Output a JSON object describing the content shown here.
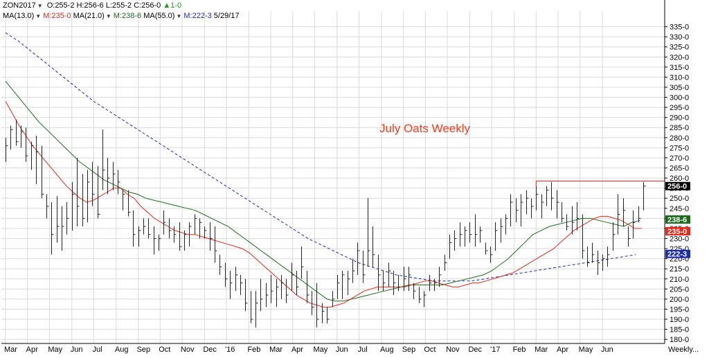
{
  "header": {
    "symbol": "ZON2017",
    "open_label": "O:",
    "open": "255-2",
    "high_label": "H:",
    "high": "256-6",
    "low_label": "L:",
    "low": "255-2",
    "close_label": "C:",
    "close": "256-0",
    "change": "1-0",
    "ma1": "MA(13.0)",
    "ma1_value": "M:235-0",
    "ma2": "MA(21.0)",
    "ma2_value": "M:238-6",
    "ma3": "MA(55.0)",
    "ma3_value": "M:222-3",
    "date": "5/29/17",
    "dropdown_icon": "caret-down-icon",
    "change_icon": "triangle-up-icon"
  },
  "colors": {
    "price": "#222222",
    "ma13": "#e8261a",
    "ma21": "#1b6b1b",
    "ma55": "#1a2bb0",
    "resistance": "#e8261a",
    "grid": "#d9d9d9",
    "last_price_tag": "#000000",
    "ma13_tag": "#e8261a",
    "ma21_tag": "#1b6b1b",
    "ma55_tag": "#1a2bb0"
  },
  "chart_data": {
    "type": "ohlc",
    "title": "July Oats Weekly",
    "ylabel": "",
    "ylim": [
      178,
      340
    ],
    "grid": true,
    "x_labels": [
      "Mar",
      "Apr",
      "May",
      "Jun",
      "Jul",
      "Aug",
      "Sep",
      "Oct",
      "Nov",
      "Dec",
      "'16",
      "Feb",
      "Mar",
      "Apr",
      "May",
      "Jun",
      "Jul",
      "Aug",
      "Sep",
      "Oct",
      "Nov",
      "Dec",
      "'17",
      "Feb",
      "Mar",
      "Apr",
      "May",
      "Jun",
      "Weekly..."
    ],
    "y_ticks": [
      "335-0",
      "330-0",
      "325-0",
      "320-0",
      "315-0",
      "310-0",
      "305-0",
      "300-0",
      "295-0",
      "290-0",
      "285-0",
      "280-0",
      "275-0",
      "270-0",
      "265-0",
      "260-0",
      "255-0",
      "250-0",
      "245-0",
      "240-0",
      "235-0",
      "230-0",
      "225-0",
      "220-0",
      "215-0",
      "210-0",
      "205-0",
      "200-0",
      "195-0",
      "190-0",
      "185-0",
      "180-0"
    ],
    "price_tags": [
      {
        "label": "256-0",
        "value": 256.0,
        "kind": "last"
      },
      {
        "label": "238-6",
        "value": 238.75,
        "kind": "ma21"
      },
      {
        "label": "235-0",
        "value": 235.0,
        "kind": "ma13"
      },
      {
        "label": "222-3",
        "value": 222.375,
        "kind": "ma55"
      }
    ],
    "resistance": {
      "value": 258.5,
      "start_week": 104,
      "end_week": 127
    },
    "bars": [
      [
        280,
        268,
        276
      ],
      [
        286,
        274,
        284
      ],
      [
        289,
        276,
        278
      ],
      [
        286,
        275,
        283
      ],
      [
        285,
        268,
        271
      ],
      [
        278,
        264,
        276
      ],
      [
        281,
        257,
        273
      ],
      [
        276,
        250,
        252
      ],
      [
        252,
        240,
        246
      ],
      [
        248,
        222,
        232
      ],
      [
        251,
        228,
        236
      ],
      [
        246,
        224,
        236
      ],
      [
        248,
        232,
        240
      ],
      [
        258,
        234,
        252
      ],
      [
        270,
        236,
        246
      ],
      [
        262,
        236,
        240
      ],
      [
        264,
        238,
        258
      ],
      [
        268,
        246,
        252
      ],
      [
        266,
        240,
        242
      ],
      [
        284,
        254,
        264
      ],
      [
        270,
        252,
        260
      ],
      [
        268,
        254,
        262
      ],
      [
        264,
        252,
        258
      ],
      [
        254,
        244,
        252
      ],
      [
        254,
        241,
        243
      ],
      [
        244,
        226,
        232
      ],
      [
        236,
        226,
        234
      ],
      [
        240,
        232,
        236
      ],
      [
        240,
        230,
        232
      ],
      [
        236,
        222,
        230
      ],
      [
        232,
        224,
        230
      ],
      [
        244,
        232,
        238
      ],
      [
        240,
        230,
        234
      ],
      [
        236,
        228,
        232
      ],
      [
        238,
        224,
        226
      ],
      [
        234,
        224,
        232
      ],
      [
        238,
        226,
        236
      ],
      [
        242,
        232,
        240
      ],
      [
        240,
        230,
        238
      ],
      [
        236,
        230,
        234
      ],
      [
        238,
        224,
        230
      ],
      [
        236,
        218,
        224
      ],
      [
        222,
        212,
        216
      ],
      [
        218,
        206,
        210
      ],
      [
        214,
        200,
        208
      ],
      [
        216,
        204,
        212
      ],
      [
        212,
        202,
        208
      ],
      [
        210,
        194,
        198
      ],
      [
        204,
        188,
        190
      ],
      [
        204,
        186,
        198
      ],
      [
        210,
        194,
        200
      ],
      [
        208,
        196,
        202
      ],
      [
        212,
        198,
        204
      ],
      [
        210,
        196,
        206
      ],
      [
        212,
        200,
        208
      ],
      [
        210,
        198,
        202
      ],
      [
        218,
        204,
        212
      ],
      [
        214,
        202,
        206
      ],
      [
        226,
        210,
        216
      ],
      [
        214,
        198,
        202
      ],
      [
        204,
        192,
        196
      ],
      [
        208,
        186,
        190
      ],
      [
        198,
        188,
        194
      ],
      [
        196,
        188,
        190
      ],
      [
        204,
        196,
        200
      ],
      [
        212,
        200,
        208
      ],
      [
        214,
        200,
        212
      ],
      [
        214,
        202,
        210
      ],
      [
        220,
        208,
        214
      ],
      [
        228,
        212,
        224
      ],
      [
        224,
        208,
        212
      ],
      [
        250,
        216,
        224
      ],
      [
        236,
        216,
        222
      ],
      [
        222,
        204,
        212
      ],
      [
        214,
        204,
        208
      ],
      [
        218,
        206,
        214
      ],
      [
        214,
        202,
        208
      ],
      [
        212,
        204,
        206
      ],
      [
        216,
        204,
        210
      ],
      [
        216,
        204,
        212
      ],
      [
        208,
        200,
        204
      ],
      [
        206,
        198,
        200
      ],
      [
        204,
        196,
        202
      ],
      [
        212,
        204,
        208
      ],
      [
        210,
        204,
        208
      ],
      [
        216,
        206,
        212
      ],
      [
        222,
        214,
        218
      ],
      [
        232,
        220,
        228
      ],
      [
        234,
        224,
        230
      ],
      [
        238,
        226,
        232
      ],
      [
        236,
        226,
        234
      ],
      [
        238,
        228,
        232
      ],
      [
        242,
        226,
        232
      ],
      [
        236,
        228,
        234
      ],
      [
        228,
        222,
        224
      ],
      [
        226,
        218,
        222
      ],
      [
        238,
        224,
        234
      ],
      [
        240,
        228,
        236
      ],
      [
        242,
        232,
        240
      ],
      [
        252,
        236,
        248
      ],
      [
        250,
        238,
        244
      ],
      [
        252,
        236,
        248
      ],
      [
        254,
        242,
        250
      ],
      [
        250,
        240,
        246
      ],
      [
        256,
        244,
        252
      ],
      [
        252,
        240,
        248
      ],
      [
        256,
        246,
        254
      ],
      [
        258,
        244,
        250
      ],
      [
        254,
        240,
        248
      ],
      [
        248,
        238,
        240
      ],
      [
        242,
        234,
        236
      ],
      [
        246,
        232,
        238
      ],
      [
        248,
        234,
        240
      ],
      [
        242,
        220,
        224
      ],
      [
        226,
        216,
        218
      ],
      [
        228,
        218,
        222
      ],
      [
        224,
        212,
        218
      ],
      [
        222,
        214,
        220
      ],
      [
        226,
        216,
        222
      ],
      [
        238,
        224,
        232
      ],
      [
        252,
        232,
        242
      ],
      [
        250,
        236,
        244
      ],
      [
        236,
        226,
        230
      ],
      [
        244,
        230,
        238
      ],
      [
        246,
        238,
        240
      ],
      [
        258,
        244,
        256
      ]
    ],
    "series": [
      {
        "name": "MA(13.0)",
        "values": [
          298,
          292,
          286,
          281,
          276,
          272,
          268,
          264,
          260,
          256,
          253,
          250,
          248,
          249,
          251,
          253,
          255,
          255,
          252,
          250,
          246,
          243,
          240,
          238,
          236,
          234,
          233,
          232,
          232,
          231,
          230,
          229,
          228,
          227,
          226,
          225,
          223,
          220,
          217,
          214,
          211,
          208,
          205,
          202,
          200,
          198,
          197,
          196,
          196,
          197,
          198,
          200,
          202,
          204,
          205,
          206,
          206,
          206,
          206,
          206,
          207,
          208,
          209,
          209,
          208,
          207,
          206,
          206,
          207,
          208,
          208,
          209,
          210,
          211,
          212,
          213,
          215,
          217,
          219,
          221,
          223,
          225,
          228,
          231,
          234,
          236,
          238,
          240,
          241,
          241,
          240,
          239,
          237,
          235,
          235
        ]
      },
      {
        "name": "MA(21.0)",
        "values": [
          308,
          303,
          298,
          293,
          288,
          284,
          280,
          276,
          272,
          268,
          265,
          262,
          259,
          257,
          255,
          253,
          252,
          250,
          249,
          248,
          247,
          246,
          245,
          244,
          242,
          240,
          238,
          236,
          233,
          230,
          227,
          224,
          221,
          218,
          215,
          212,
          209,
          206,
          203,
          200,
          199,
          199,
          200,
          201,
          202,
          203,
          204,
          205,
          206,
          207,
          207,
          207,
          207,
          207,
          208,
          209,
          210,
          211,
          212,
          214,
          217,
          220,
          224,
          228,
          232,
          234,
          236,
          237,
          238,
          239,
          240,
          240,
          239,
          238,
          237,
          236,
          238,
          239
        ]
      },
      {
        "name": "MA(55.0)",
        "values": [
          332,
          328,
          323,
          318,
          313,
          308,
          303,
          298,
          294,
          290,
          286,
          282,
          278,
          274,
          270,
          266,
          262,
          258,
          254,
          250,
          246,
          242,
          238,
          234,
          230,
          227,
          224,
          221,
          218,
          216,
          214,
          212,
          211,
          210,
          209,
          209,
          209,
          209,
          210,
          211,
          212,
          213,
          214,
          215,
          216,
          217,
          218,
          219,
          220,
          221,
          222
        ]
      }
    ]
  }
}
